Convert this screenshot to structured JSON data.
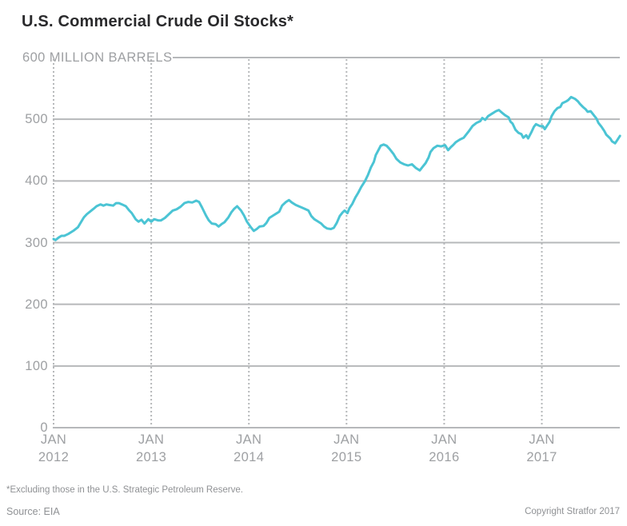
{
  "header": {
    "title": "U.S. Commercial Crude Oil Stocks*"
  },
  "footer": {
    "footnote": "*Excluding those in the U.S. Strategic Petroleum Reserve.",
    "source": "Source: EIA",
    "copyright": "Copyright Stratfor 2017"
  },
  "colors": {
    "line": "#4bc4d4",
    "grid": "#b6b8ba",
    "axis_text": "#9ea0a3",
    "title_text": "#2a2a2c",
    "footer_text": "#8f9194",
    "background": "#ffffff"
  },
  "chart_data": {
    "type": "line",
    "title": "U.S. Commercial Crude Oil Stocks*",
    "ylabel": "MILLION BARRELS",
    "y_top_label": "600 MILLION BARRELS",
    "ylim": [
      0,
      600
    ],
    "y_ticks": [
      600,
      500,
      400,
      300,
      200,
      100,
      0
    ],
    "y_tick_labels": [
      "500",
      "400",
      "300",
      "200",
      "100",
      "0"
    ],
    "x_ticks": [
      {
        "month": "JAN",
        "year": "2012"
      },
      {
        "month": "JAN",
        "year": "2013"
      },
      {
        "month": "JAN",
        "year": "2014"
      },
      {
        "month": "JAN",
        "year": "2015"
      },
      {
        "month": "JAN",
        "year": "2016"
      },
      {
        "month": "JAN",
        "year": "2017"
      }
    ],
    "grid": true,
    "legend": "none",
    "series": [
      {
        "name": "U.S. commercial crude oil stocks (million barrels)",
        "points": [
          [
            2012.0,
            306
          ],
          [
            2012.02,
            304
          ],
          [
            2012.05,
            308
          ],
          [
            2012.08,
            311
          ],
          [
            2012.11,
            311
          ],
          [
            2012.15,
            314
          ],
          [
            2012.18,
            317
          ],
          [
            2012.21,
            320
          ],
          [
            2012.25,
            325
          ],
          [
            2012.28,
            333
          ],
          [
            2012.31,
            341
          ],
          [
            2012.34,
            346
          ],
          [
            2012.38,
            351
          ],
          [
            2012.41,
            355
          ],
          [
            2012.44,
            359
          ],
          [
            2012.48,
            362
          ],
          [
            2012.51,
            360
          ],
          [
            2012.54,
            362
          ],
          [
            2012.57,
            361
          ],
          [
            2012.61,
            360
          ],
          [
            2012.64,
            364
          ],
          [
            2012.67,
            364
          ],
          [
            2012.7,
            362
          ],
          [
            2012.74,
            359
          ],
          [
            2012.77,
            353
          ],
          [
            2012.8,
            348
          ],
          [
            2012.84,
            338
          ],
          [
            2012.87,
            334
          ],
          [
            2012.9,
            337
          ],
          [
            2012.93,
            331
          ],
          [
            2012.97,
            338
          ],
          [
            2013.0,
            334
          ],
          [
            2013.03,
            338
          ],
          [
            2013.07,
            336
          ],
          [
            2013.1,
            336
          ],
          [
            2013.14,
            340
          ],
          [
            2013.18,
            346
          ],
          [
            2013.22,
            352
          ],
          [
            2013.26,
            354
          ],
          [
            2013.3,
            358
          ],
          [
            2013.34,
            364
          ],
          [
            2013.38,
            366
          ],
          [
            2013.42,
            365
          ],
          [
            2013.46,
            368
          ],
          [
            2013.49,
            366
          ],
          [
            2013.52,
            357
          ],
          [
            2013.56,
            344
          ],
          [
            2013.59,
            336
          ],
          [
            2013.62,
            331
          ],
          [
            2013.66,
            330
          ],
          [
            2013.69,
            326
          ],
          [
            2013.72,
            330
          ],
          [
            2013.75,
            333
          ],
          [
            2013.79,
            341
          ],
          [
            2013.82,
            349
          ],
          [
            2013.85,
            355
          ],
          [
            2013.88,
            359
          ],
          [
            2013.92,
            352
          ],
          [
            2013.95,
            344
          ],
          [
            2013.98,
            334
          ],
          [
            2014.02,
            325
          ],
          [
            2014.05,
            319
          ],
          [
            2014.08,
            322
          ],
          [
            2014.11,
            326
          ],
          [
            2014.15,
            327
          ],
          [
            2014.18,
            332
          ],
          [
            2014.21,
            340
          ],
          [
            2014.25,
            344
          ],
          [
            2014.28,
            347
          ],
          [
            2014.31,
            350
          ],
          [
            2014.34,
            360
          ],
          [
            2014.38,
            366
          ],
          [
            2014.41,
            369
          ],
          [
            2014.44,
            365
          ],
          [
            2014.48,
            361
          ],
          [
            2014.51,
            359
          ],
          [
            2014.54,
            357
          ],
          [
            2014.57,
            355
          ],
          [
            2014.61,
            352
          ],
          [
            2014.64,
            343
          ],
          [
            2014.67,
            338
          ],
          [
            2014.7,
            335
          ],
          [
            2014.74,
            331
          ],
          [
            2014.77,
            326
          ],
          [
            2014.8,
            323
          ],
          [
            2014.84,
            322
          ],
          [
            2014.87,
            324
          ],
          [
            2014.9,
            332
          ],
          [
            2014.93,
            343
          ],
          [
            2014.96,
            349
          ],
          [
            2014.98,
            352
          ],
          [
            2015.01,
            348
          ],
          [
            2015.03,
            356
          ],
          [
            2015.06,
            363
          ],
          [
            2015.09,
            373
          ],
          [
            2015.12,
            381
          ],
          [
            2015.15,
            390
          ],
          [
            2015.19,
            400
          ],
          [
            2015.22,
            410
          ],
          [
            2015.25,
            422
          ],
          [
            2015.28,
            431
          ],
          [
            2015.3,
            442
          ],
          [
            2015.33,
            451
          ],
          [
            2015.35,
            457
          ],
          [
            2015.38,
            459
          ],
          [
            2015.41,
            457
          ],
          [
            2015.44,
            452
          ],
          [
            2015.48,
            444
          ],
          [
            2015.51,
            436
          ],
          [
            2015.55,
            430
          ],
          [
            2015.59,
            427
          ],
          [
            2015.63,
            425
          ],
          [
            2015.67,
            427
          ],
          [
            2015.71,
            421
          ],
          [
            2015.75,
            417
          ],
          [
            2015.78,
            423
          ],
          [
            2015.81,
            429
          ],
          [
            2015.84,
            438
          ],
          [
            2015.86,
            447
          ],
          [
            2015.89,
            453
          ],
          [
            2015.93,
            457
          ],
          [
            2015.97,
            456
          ],
          [
            2016.01,
            458
          ],
          [
            2016.04,
            450
          ],
          [
            2016.07,
            455
          ],
          [
            2016.09,
            458
          ],
          [
            2016.12,
            463
          ],
          [
            2016.16,
            467
          ],
          [
            2016.2,
            470
          ],
          [
            2016.25,
            480
          ],
          [
            2016.29,
            489
          ],
          [
            2016.33,
            494
          ],
          [
            2016.37,
            497
          ],
          [
            2016.39,
            502
          ],
          [
            2016.42,
            499
          ],
          [
            2016.45,
            505
          ],
          [
            2016.49,
            509
          ],
          [
            2016.53,
            513
          ],
          [
            2016.56,
            515
          ],
          [
            2016.59,
            511
          ],
          [
            2016.62,
            507
          ],
          [
            2016.66,
            503
          ],
          [
            2016.68,
            496
          ],
          [
            2016.7,
            493
          ],
          [
            2016.73,
            483
          ],
          [
            2016.76,
            478
          ],
          [
            2016.79,
            476
          ],
          [
            2016.81,
            470
          ],
          [
            2016.84,
            474
          ],
          [
            2016.86,
            469
          ],
          [
            2016.89,
            478
          ],
          [
            2016.92,
            488
          ],
          [
            2016.94,
            492
          ],
          [
            2016.98,
            489
          ],
          [
            2017.01,
            489
          ],
          [
            2017.03,
            484
          ],
          [
            2017.06,
            491
          ],
          [
            2017.08,
            496
          ],
          [
            2017.1,
            505
          ],
          [
            2017.13,
            513
          ],
          [
            2017.16,
            518
          ],
          [
            2017.19,
            520
          ],
          [
            2017.21,
            526
          ],
          [
            2017.25,
            529
          ],
          [
            2017.27,
            531
          ],
          [
            2017.3,
            536
          ],
          [
            2017.34,
            533
          ],
          [
            2017.37,
            529
          ],
          [
            2017.39,
            525
          ],
          [
            2017.42,
            520
          ],
          [
            2017.45,
            516
          ],
          [
            2017.47,
            512
          ],
          [
            2017.5,
            513
          ],
          [
            2017.52,
            509
          ],
          [
            2017.56,
            501
          ],
          [
            2017.58,
            494
          ],
          [
            2017.61,
            488
          ],
          [
            2017.64,
            481
          ],
          [
            2017.66,
            475
          ],
          [
            2017.7,
            469
          ],
          [
            2017.72,
            464
          ],
          [
            2017.75,
            461
          ],
          [
            2017.78,
            468
          ],
          [
            2017.8,
            473
          ]
        ]
      }
    ]
  }
}
